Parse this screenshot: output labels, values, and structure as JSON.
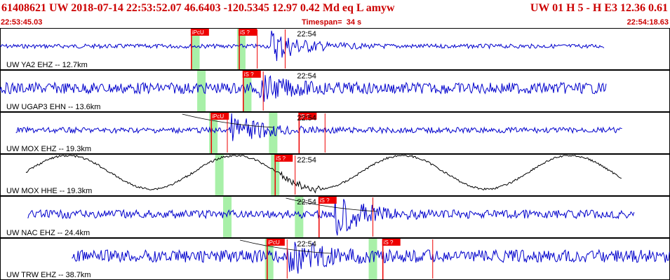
{
  "header": {
    "title": "61408621 UW 2018-07-14 22:53:52.07   46.6403 -120.5345  12.97  0.42 Md  eq  L amyw",
    "pick_info": "UW 01  H   5  -  H E3   12.36  0.61",
    "start_time": "22:53:45.03",
    "timespan_label": "Timespan=",
    "timespan_value": "34 s",
    "end_time": "22:54:18.63"
  },
  "colors": {
    "trace": "#0000cc",
    "trace_hh": "#000000",
    "pick": "#ee0000",
    "window": "#a8f0a8",
    "header_text": "#cc0000",
    "panel_border": "#000000"
  },
  "time_axis": {
    "start_s": 0,
    "end_s": 33.6,
    "tick_label": "22:54",
    "tick_s": 15.0
  },
  "panels": [
    {
      "station": "UW YA2 EHZ -- 12.7km",
      "kind": "bb",
      "start_s": 0.0,
      "end_s": 30.3,
      "amp": 3,
      "burst_s": 13.6,
      "burst_amp": 24,
      "windows_s": [
        9.8,
        12.1
      ],
      "picks": [
        {
          "label": "iPcU",
          "t": 9.6
        },
        {
          "label": "iS ?",
          "t": 12.0
        }
      ],
      "extra_picks_s": [
        12.9,
        14.3
      ],
      "tick_s": 15.0,
      "curve": false
    },
    {
      "station": "UW UGAP3 EHN -- 13.6km",
      "kind": "bb",
      "start_s": 0.0,
      "end_s": 30.4,
      "amp": 8,
      "burst_s": 13.0,
      "burst_amp": 14,
      "windows_s": [
        10.1,
        12.4
      ],
      "picks": [
        {
          "label": "iS ?",
          "t": 12.2
        }
      ],
      "extra_picks_s": [
        13.2
      ],
      "tick_s": 15.0,
      "curve": false
    },
    {
      "station": "UW MOX EHZ -- 19.3km",
      "kind": "bb",
      "start_s": 0.8,
      "end_s": 31.2,
      "amp": 4,
      "burst_s": 11.6,
      "burst_amp": 22,
      "windows_s": [
        10.7,
        13.7
      ],
      "picks": [
        {
          "label": "iPcU",
          "t": 10.6
        },
        {
          "label": "iS ?",
          "t": 15.0
        }
      ],
      "extra_picks_s": [
        11.4,
        16.3
      ],
      "tick_s": 15.0,
      "curve": true
    },
    {
      "station": "UW MOX HHE -- 19.3km",
      "kind": "lp",
      "start_s": 1.3,
      "end_s": 31.2,
      "amp": 24,
      "burst_s": 15.0,
      "burst_amp": 10,
      "windows_s": [
        11.0,
        13.8
      ],
      "picks": [
        {
          "label": "iS ?",
          "t": 13.8
        }
      ],
      "extra_picks_s": [
        14.8
      ],
      "tick_s": 15.0,
      "curve": false
    },
    {
      "station": "UW NAC EHZ -- 24.4km",
      "kind": "bb",
      "start_s": 1.4,
      "end_s": 31.8,
      "amp": 6,
      "burst_s": 16.8,
      "burst_amp": 28,
      "windows_s": [
        11.4,
        15.0
      ],
      "picks": [
        {
          "label": "iS ?",
          "t": 16.0
        }
      ],
      "extra_picks_s": [
        18.7
      ],
      "tick_s": 15.0,
      "curve": true
    },
    {
      "station": "UW TRW EHZ -- 38.7km",
      "kind": "bb",
      "start_s": 3.6,
      "end_s": 33.6,
      "amp": 9,
      "burst_s": 14.5,
      "burst_amp": 22,
      "windows_s": [
        13.5,
        18.7
      ],
      "picks": [
        {
          "label": "iPcU",
          "t": 13.4
        },
        {
          "label": "iS ?",
          "t": 19.2
        }
      ],
      "extra_picks_s": [
        14.4,
        21.7
      ],
      "tick_s": 15.0,
      "curve": true
    }
  ]
}
